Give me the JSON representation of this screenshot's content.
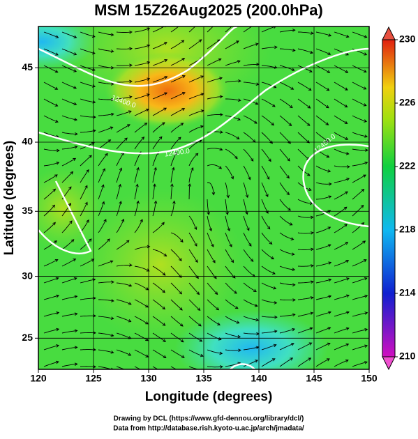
{
  "chart_data": {
    "type": "map",
    "title": "MSM 15Z26Aug2025 (200.0hPa)",
    "xlabel": "Longitude (degrees)",
    "ylabel": "Latitude  (degrees)",
    "xlim": [
      120,
      150
    ],
    "xticks": [
      120,
      125,
      130,
      135,
      140,
      145,
      150
    ],
    "ylim": [
      22.4,
      47.6
    ],
    "yticks": [
      25,
      30,
      35,
      40,
      45
    ],
    "grid": true,
    "colorbar": {
      "lim": [
        210,
        230
      ],
      "ticks": [
        210,
        214,
        218,
        222,
        226,
        230
      ]
    },
    "contour_labels": [
      "12400.0",
      "12400.0",
      "12450.0"
    ]
  },
  "footer": {
    "line1": "Drawing by DCL (https://www.gfd-dennou.org/library/dcl/)",
    "line2": "Data from http://database.rish.kyoto-u.ac.jp/arch/jmadata/"
  }
}
